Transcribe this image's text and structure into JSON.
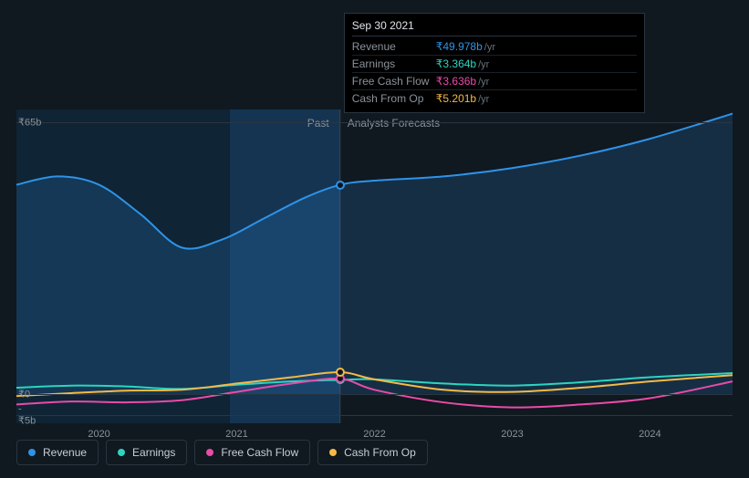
{
  "chart": {
    "type": "line",
    "background_color": "#101820",
    "grid_color": "#2a3540",
    "x_years": [
      2020,
      2021,
      2022,
      2023,
      2024
    ],
    "x_domain_start": 2019.4,
    "x_domain_end": 2024.6,
    "y_labels": [
      {
        "label": "₹65b",
        "value": 65
      },
      {
        "label": "₹0",
        "value": 0
      },
      {
        "label": "-₹5b",
        "value": -5
      }
    ],
    "y_min": -7,
    "y_max": 68,
    "past_region": {
      "start": 2019.4,
      "end": 2021.75,
      "bg": "#0f2435"
    },
    "highlight_region": {
      "start": 2020.95,
      "end": 2021.75,
      "bg": "#153452"
    },
    "divider": {
      "x": 2021.75,
      "past_label": "Past",
      "future_label": "Analysts Forecasts"
    },
    "series": [
      {
        "key": "revenue",
        "label": "Revenue",
        "color": "#2e93e8",
        "fill_opacity": 0.18,
        "line_width": 2,
        "points": [
          [
            2019.4,
            50
          ],
          [
            2019.7,
            52
          ],
          [
            2020.0,
            50
          ],
          [
            2020.3,
            43
          ],
          [
            2020.6,
            35
          ],
          [
            2020.9,
            37
          ],
          [
            2021.2,
            42
          ],
          [
            2021.5,
            47
          ],
          [
            2021.75,
            49.978
          ],
          [
            2022.0,
            51
          ],
          [
            2022.5,
            52
          ],
          [
            2023.0,
            54
          ],
          [
            2023.5,
            57
          ],
          [
            2024.0,
            61
          ],
          [
            2024.6,
            67
          ]
        ]
      },
      {
        "key": "earnings",
        "label": "Earnings",
        "color": "#2dd4bf",
        "fill_opacity": 0,
        "line_width": 2,
        "points": [
          [
            2019.4,
            1.5
          ],
          [
            2019.8,
            2.0
          ],
          [
            2020.2,
            1.8
          ],
          [
            2020.6,
            1.2
          ],
          [
            2021.0,
            2.2
          ],
          [
            2021.4,
            3.0
          ],
          [
            2021.75,
            3.364
          ],
          [
            2022.0,
            3.5
          ],
          [
            2022.5,
            2.5
          ],
          [
            2023.0,
            2.0
          ],
          [
            2023.5,
            2.8
          ],
          [
            2024.0,
            4.0
          ],
          [
            2024.6,
            5.0
          ]
        ]
      },
      {
        "key": "fcf",
        "label": "Free Cash Flow",
        "color": "#e94ba8",
        "fill_opacity": 0,
        "line_width": 2,
        "points": [
          [
            2019.4,
            -2.5
          ],
          [
            2019.8,
            -1.8
          ],
          [
            2020.2,
            -2.0
          ],
          [
            2020.6,
            -1.5
          ],
          [
            2021.0,
            0.5
          ],
          [
            2021.4,
            2.5
          ],
          [
            2021.75,
            3.636
          ],
          [
            2022.0,
            1.0
          ],
          [
            2022.5,
            -2.0
          ],
          [
            2023.0,
            -3.2
          ],
          [
            2023.5,
            -2.5
          ],
          [
            2024.0,
            -1.0
          ],
          [
            2024.6,
            3.0
          ]
        ]
      },
      {
        "key": "cfo",
        "label": "Cash From Op",
        "color": "#f5b947",
        "fill_opacity": 0,
        "line_width": 2,
        "points": [
          [
            2019.4,
            -0.5
          ],
          [
            2019.8,
            0.2
          ],
          [
            2020.2,
            0.8
          ],
          [
            2020.6,
            1.0
          ],
          [
            2021.0,
            2.5
          ],
          [
            2021.4,
            4.0
          ],
          [
            2021.75,
            5.201
          ],
          [
            2022.0,
            3.5
          ],
          [
            2022.5,
            1.0
          ],
          [
            2023.0,
            0.5
          ],
          [
            2023.5,
            1.5
          ],
          [
            2024.0,
            3.0
          ],
          [
            2024.6,
            4.5
          ]
        ]
      }
    ],
    "hover_x": 2021.75,
    "tooltip": {
      "date": "Sep 30 2021",
      "rows": [
        {
          "label": "Revenue",
          "value": "₹49.978b",
          "unit": "/yr",
          "color": "#2e93e8"
        },
        {
          "label": "Earnings",
          "value": "₹3.364b",
          "unit": "/yr",
          "color": "#2dd4bf"
        },
        {
          "label": "Free Cash Flow",
          "value": "₹3.636b",
          "unit": "/yr",
          "color": "#e94ba8"
        },
        {
          "label": "Cash From Op",
          "value": "₹5.201b",
          "unit": "/yr",
          "color": "#f5b947"
        }
      ]
    }
  }
}
